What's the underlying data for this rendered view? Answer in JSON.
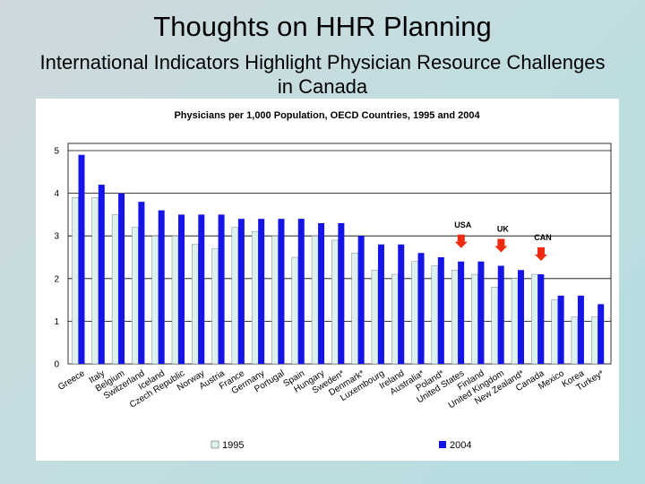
{
  "slide": {
    "title": "Thoughts on HHR Planning",
    "subtitle": "International Indicators Highlight Physician Resource Challenges in Canada"
  },
  "colors": {
    "series_1995": "#ddf1ee",
    "series_2004": "#1414e6",
    "annotation_arrow": "#ee2a10"
  },
  "chart_data": {
    "type": "bar",
    "title": "Physicians per 1,000 Population, OECD Countries, 1995 and 2004",
    "xlabel": "",
    "ylabel": "",
    "ylim": [
      0,
      5
    ],
    "yticks": [
      0,
      1,
      2,
      3,
      4,
      5
    ],
    "grid": "horizontal",
    "legend": "bottom",
    "categories": [
      "Greece",
      "Italy",
      "Belgium",
      "Switzerland",
      "Iceland",
      "Czech Republic",
      "Norway",
      "Austria",
      "France",
      "Germany",
      "Portugal",
      "Spain",
      "Hungary",
      "Sweden*",
      "Denmark*",
      "Luxembourg",
      "Ireland",
      "Australia*",
      "Poland*",
      "United States",
      "Finland",
      "United Kingdom",
      "New Zealand*",
      "Canada",
      "Mexico",
      "Korea",
      "Turkey*"
    ],
    "series": [
      {
        "name": "1995",
        "values": [
          3.9,
          3.9,
          3.5,
          3.2,
          3.0,
          3.0,
          2.8,
          2.7,
          3.2,
          3.1,
          3.0,
          2.5,
          3.0,
          2.9,
          2.6,
          2.2,
          2.1,
          2.4,
          2.3,
          2.2,
          2.1,
          1.8,
          2.0,
          2.1,
          1.5,
          1.1,
          1.1
        ]
      },
      {
        "name": "2004",
        "values": [
          4.9,
          4.2,
          4.0,
          3.8,
          3.6,
          3.5,
          3.5,
          3.5,
          3.4,
          3.4,
          3.4,
          3.4,
          3.3,
          3.3,
          3.0,
          2.8,
          2.8,
          2.6,
          2.5,
          2.4,
          2.4,
          2.3,
          2.2,
          2.1,
          1.6,
          1.6,
          1.4
        ]
      }
    ],
    "annotations": [
      {
        "label": "USA",
        "category": "United States"
      },
      {
        "label": "UK",
        "category": "United Kingdom"
      },
      {
        "label": "CAN",
        "category": "Canada"
      }
    ]
  }
}
